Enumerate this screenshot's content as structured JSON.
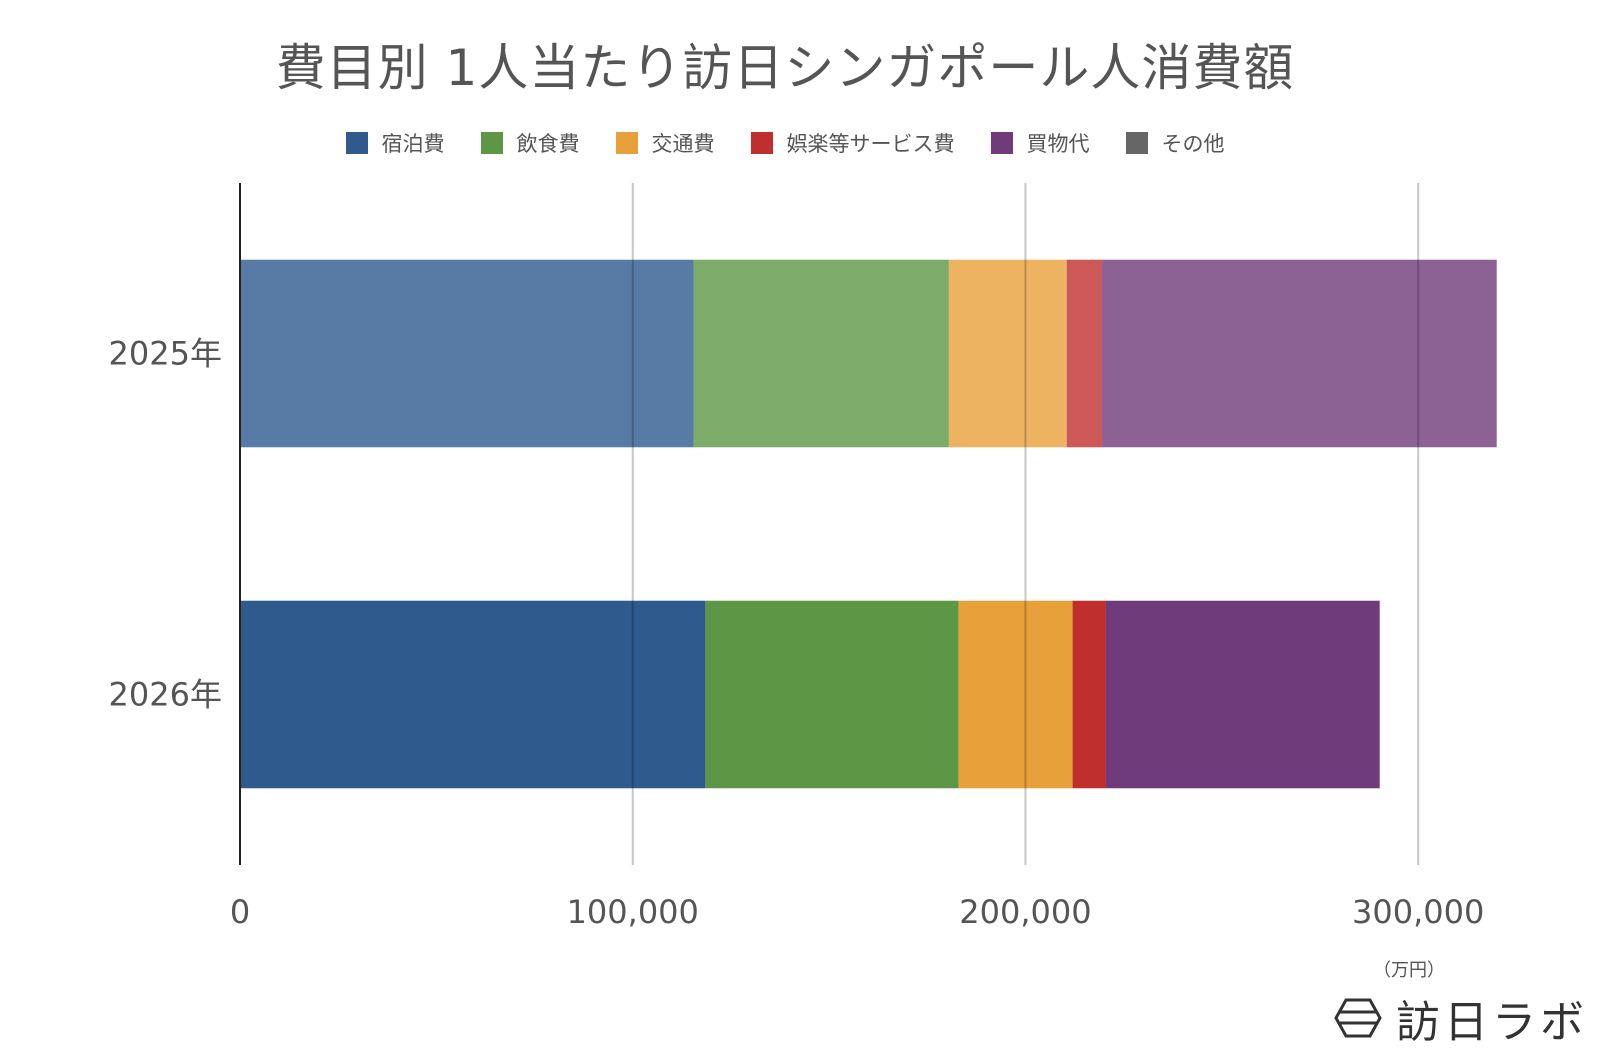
{
  "title": "費目別 1人当たり訪日シンガポール人消費額",
  "unit_label": "（万円）",
  "logo_text": "訪日ラボ",
  "chart_data": {
    "type": "bar",
    "orientation": "horizontal",
    "stacked": true,
    "title": "費目別 1人当たり訪日シンガポール人消費額",
    "categories": [
      "2025年",
      "2026年"
    ],
    "xlim": [
      0,
      330000
    ],
    "xticks": [
      0,
      100000,
      200000,
      300000
    ],
    "xtick_labels": [
      "0",
      "100,000",
      "200,000",
      "300,000"
    ],
    "grid": true,
    "legend_position": "top",
    "series": [
      {
        "name": "宿泊費",
        "color": "#2E5A8E",
        "values": [
          115500,
          118500
        ]
      },
      {
        "name": "飲食費",
        "color": "#5D9645",
        "values": [
          65000,
          64500
        ]
      },
      {
        "name": "交通費",
        "color": "#E8A03A",
        "values": [
          30000,
          29000
        ]
      },
      {
        "name": "娯楽等サービス費",
        "color": "#BF2F2E",
        "values": [
          9000,
          8500
        ]
      },
      {
        "name": "買物代",
        "color": "#6F3B7A",
        "values": [
          100500,
          69700
        ]
      },
      {
        "name": "その他",
        "color": "#666666",
        "values": [
          0,
          0
        ]
      }
    ],
    "category_opacity": [
      0.8,
      1.0
    ]
  }
}
